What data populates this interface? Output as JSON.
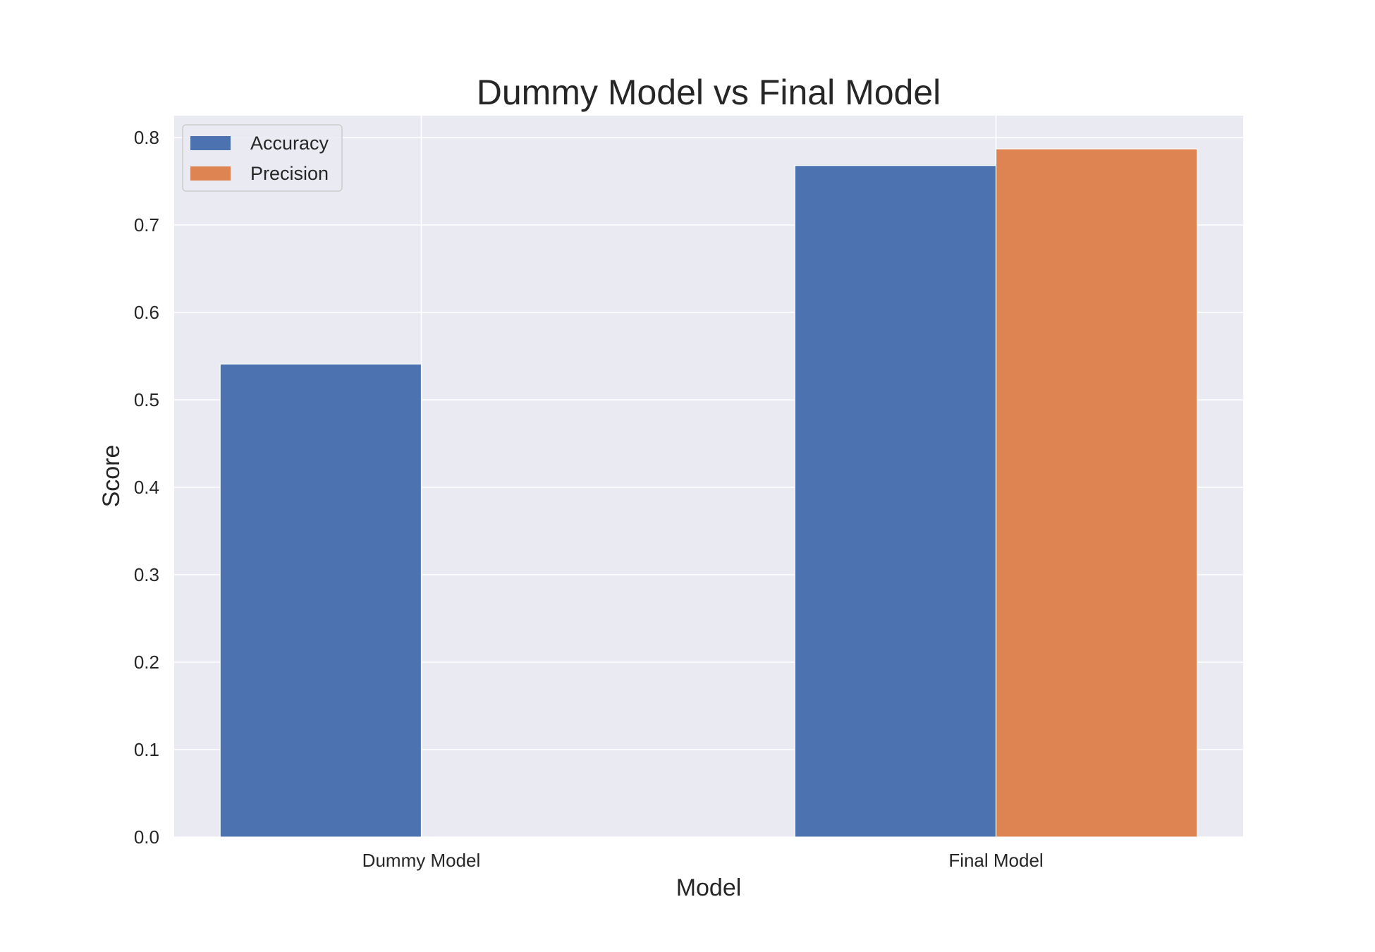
{
  "chart_data": {
    "type": "bar",
    "title": "Dummy Model vs Final Model",
    "xlabel": "Model",
    "ylabel": "Score",
    "categories": [
      "Dummy Model",
      "Final Model"
    ],
    "series": [
      {
        "name": "Accuracy",
        "values": [
          0.541,
          0.768
        ],
        "color": "#4c72b0"
      },
      {
        "name": "Precision",
        "values": [
          0.0,
          0.787
        ],
        "color": "#dd8452"
      }
    ],
    "ylim": [
      0,
      0.825
    ],
    "yticks": [
      0.0,
      0.1,
      0.2,
      0.3,
      0.4,
      0.5,
      0.6,
      0.7,
      0.8
    ],
    "ytick_labels": [
      "0.0",
      "0.1",
      "0.2",
      "0.3",
      "0.4",
      "0.5",
      "0.6",
      "0.7",
      "0.8"
    ],
    "grid": true,
    "legend_position": "top-left",
    "colors": {
      "plot_background": "#eaeaf2",
      "grid": "#ffffff"
    }
  }
}
